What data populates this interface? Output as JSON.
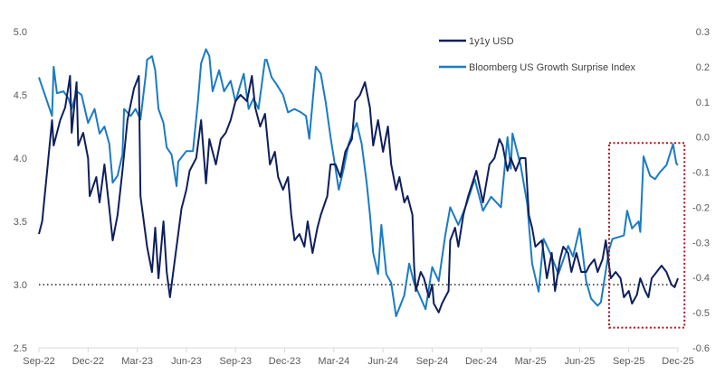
{
  "chart_data": {
    "type": "line",
    "title": "",
    "xlabel": "",
    "x_units": "months since Sep-22",
    "x_tick_labels": [
      "Sep-22",
      "Dec-22",
      "Mar-23",
      "Jun-23",
      "Sep-23",
      "Dec-23",
      "Mar-24",
      "Jun-24",
      "Sep-24",
      "Dec-24",
      "Mar-25",
      "Jun-25",
      "Sep-25",
      "Dec-25"
    ],
    "x_tick_values": [
      0,
      3,
      6,
      9,
      12,
      15,
      18,
      21,
      24,
      27,
      30,
      33,
      36,
      39
    ],
    "xlim": [
      0,
      39
    ],
    "y_left": {
      "label": "",
      "ylim": [
        2.5,
        5.0
      ],
      "ticks": [
        "2.5",
        "3.0",
        "3.5",
        "4.0",
        "4.5",
        "5.0"
      ],
      "tick_values": [
        2.5,
        3.0,
        3.5,
        4.0,
        4.5,
        5.0
      ]
    },
    "y_right": {
      "label": "",
      "ylim": [
        -0.6,
        0.3
      ],
      "ticks": [
        "-0.6",
        "-0.5",
        "-0.4",
        "-0.3",
        "-0.2",
        "-0.1",
        "0.0",
        "0.1",
        "0.2",
        "0.3"
      ],
      "tick_values": [
        -0.6,
        -0.5,
        -0.4,
        -0.3,
        -0.2,
        -0.1,
        0.0,
        0.1,
        0.2,
        0.3
      ]
    },
    "grid": false,
    "legend_position": "top-right",
    "series": [
      {
        "name": "1y1y USD",
        "axis": "left",
        "color": "#0e1f5b",
        "points": [
          [
            0,
            3.4
          ],
          [
            0.2,
            3.5
          ],
          [
            0.5,
            3.9
          ],
          [
            0.8,
            4.3
          ],
          [
            0.9,
            4.1
          ],
          [
            1.3,
            4.3
          ],
          [
            1.6,
            4.4
          ],
          [
            1.9,
            4.65
          ],
          [
            2.0,
            4.2
          ],
          [
            2.3,
            4.6
          ],
          [
            2.4,
            4.1
          ],
          [
            2.7,
            4.2
          ],
          [
            3.0,
            4.0
          ],
          [
            3.1,
            3.7
          ],
          [
            3.5,
            3.85
          ],
          [
            3.7,
            3.65
          ],
          [
            4.0,
            3.95
          ],
          [
            4.3,
            3.6
          ],
          [
            4.5,
            3.35
          ],
          [
            4.8,
            3.55
          ],
          [
            5.1,
            3.9
          ],
          [
            5.4,
            4.3
          ],
          [
            5.8,
            4.55
          ],
          [
            6.1,
            4.65
          ],
          [
            6.2,
            3.7
          ],
          [
            6.6,
            3.3
          ],
          [
            6.9,
            3.1
          ],
          [
            7.1,
            3.45
          ],
          [
            7.3,
            3.05
          ],
          [
            7.6,
            3.5
          ],
          [
            7.8,
            3.1
          ],
          [
            8.0,
            2.9
          ],
          [
            8.2,
            3.1
          ],
          [
            8.5,
            3.4
          ],
          [
            8.7,
            3.6
          ],
          [
            9.0,
            3.75
          ],
          [
            9.2,
            3.9
          ],
          [
            9.6,
            4.0
          ],
          [
            9.9,
            4.3
          ],
          [
            10.2,
            3.8
          ],
          [
            10.4,
            4.15
          ],
          [
            10.8,
            3.95
          ],
          [
            11.1,
            4.15
          ],
          [
            11.4,
            4.2
          ],
          [
            11.7,
            4.3
          ],
          [
            12.0,
            4.45
          ],
          [
            12.3,
            4.5
          ],
          [
            12.7,
            4.45
          ],
          [
            13.0,
            4.65
          ],
          [
            13.2,
            4.4
          ],
          [
            13.5,
            4.25
          ],
          [
            13.8,
            4.35
          ],
          [
            14.1,
            3.95
          ],
          [
            14.4,
            4.05
          ],
          [
            14.6,
            3.85
          ],
          [
            14.9,
            3.75
          ],
          [
            15.2,
            3.85
          ],
          [
            15.4,
            3.55
          ],
          [
            15.6,
            3.35
          ],
          [
            15.9,
            3.4
          ],
          [
            16.2,
            3.3
          ],
          [
            16.4,
            3.5
          ],
          [
            16.7,
            3.25
          ],
          [
            17.0,
            3.45
          ],
          [
            17.2,
            3.55
          ],
          [
            17.6,
            3.7
          ],
          [
            17.8,
            3.95
          ],
          [
            18.1,
            3.95
          ],
          [
            18.4,
            3.85
          ],
          [
            18.7,
            4.05
          ],
          [
            19.1,
            4.15
          ],
          [
            19.3,
            4.45
          ],
          [
            19.6,
            4.5
          ],
          [
            19.9,
            4.6
          ],
          [
            20.2,
            4.4
          ],
          [
            20.4,
            4.1
          ],
          [
            20.7,
            4.3
          ],
          [
            21.0,
            4.05
          ],
          [
            21.3,
            4.25
          ],
          [
            21.5,
            3.95
          ],
          [
            21.8,
            3.75
          ],
          [
            22.0,
            3.85
          ],
          [
            22.3,
            3.65
          ],
          [
            22.5,
            3.7
          ],
          [
            22.8,
            3.55
          ],
          [
            22.9,
            3.15
          ],
          [
            23.0,
            2.95
          ],
          [
            23.3,
            3.1
          ],
          [
            23.5,
            3.05
          ],
          [
            23.8,
            2.9
          ],
          [
            24.0,
            3.0
          ],
          [
            24.1,
            2.85
          ],
          [
            24.4,
            2.78
          ],
          [
            24.6,
            2.85
          ],
          [
            24.8,
            2.9
          ],
          [
            25.0,
            2.95
          ],
          [
            25.1,
            3.35
          ],
          [
            25.4,
            3.45
          ],
          [
            25.6,
            3.3
          ],
          [
            25.9,
            3.55
          ],
          [
            26.2,
            3.7
          ],
          [
            26.7,
            3.9
          ],
          [
            27.1,
            3.65
          ],
          [
            27.5,
            3.95
          ],
          [
            27.8,
            4.0
          ],
          [
            28.1,
            4.15
          ],
          [
            28.3,
            4.1
          ],
          [
            28.6,
            3.9
          ],
          [
            28.8,
            4.0
          ],
          [
            29.1,
            3.9
          ],
          [
            29.4,
            4.0
          ],
          [
            29.7,
            4.0
          ],
          [
            29.9,
            3.55
          ],
          [
            30.1,
            3.45
          ],
          [
            30.3,
            3.3
          ],
          [
            30.7,
            3.35
          ],
          [
            31.0,
            3.05
          ],
          [
            31.3,
            3.25
          ],
          [
            31.5,
            2.95
          ],
          [
            31.8,
            3.2
          ],
          [
            32.0,
            3.3
          ],
          [
            32.3,
            3.25
          ],
          [
            32.5,
            3.1
          ],
          [
            32.8,
            3.25
          ],
          [
            33.1,
            3.1
          ],
          [
            33.4,
            3.1
          ],
          [
            33.6,
            3.15
          ],
          [
            33.9,
            3.2
          ],
          [
            34.1,
            3.1
          ],
          [
            34.4,
            3.2
          ],
          [
            34.6,
            3.35
          ],
          [
            34.9,
            3.05
          ],
          [
            35.2,
            3.1
          ],
          [
            35.5,
            3.05
          ],
          [
            35.7,
            2.9
          ],
          [
            36.0,
            2.95
          ],
          [
            36.2,
            2.85
          ],
          [
            36.5,
            2.92
          ],
          [
            36.7,
            3.05
          ],
          [
            37.0,
            2.95
          ],
          [
            37.2,
            2.9
          ],
          [
            37.4,
            3.05
          ],
          [
            37.7,
            3.1
          ],
          [
            38.0,
            3.15
          ],
          [
            38.3,
            3.1
          ],
          [
            38.6,
            3.0
          ],
          [
            38.8,
            2.98
          ],
          [
            39.0,
            3.05
          ]
        ]
      },
      {
        "name": "Bloomberg US Growth Surprise Index",
        "axis": "right",
        "color": "#1a7bc4",
        "points": [
          [
            0,
            0.17
          ],
          [
            0.8,
            0.06
          ],
          [
            0.9,
            0.2
          ],
          [
            1.1,
            0.125
          ],
          [
            1.5,
            0.13
          ],
          [
            1.8,
            0.11
          ],
          [
            2.0,
            0.08
          ],
          [
            2.3,
            0.13
          ],
          [
            2.6,
            0.12
          ],
          [
            3.0,
            0.04
          ],
          [
            3.4,
            0.08
          ],
          [
            3.7,
            0.01
          ],
          [
            4.0,
            0.03
          ],
          [
            4.3,
            -0.02
          ],
          [
            4.5,
            -0.13
          ],
          [
            4.8,
            -0.11
          ],
          [
            5.1,
            -0.05
          ],
          [
            5.2,
            0.08
          ],
          [
            5.6,
            0.06
          ],
          [
            5.9,
            0.08
          ],
          [
            6.2,
            0.05
          ],
          [
            6.5,
            0.17
          ],
          [
            6.6,
            0.22
          ],
          [
            6.9,
            0.23
          ],
          [
            7.1,
            0.19
          ],
          [
            7.3,
            0.08
          ],
          [
            7.6,
            0.04
          ],
          [
            7.8,
            -0.03
          ],
          [
            8.1,
            -0.05
          ],
          [
            8.4,
            -0.14
          ],
          [
            8.5,
            -0.07
          ],
          [
            9.0,
            -0.04
          ],
          [
            9.4,
            -0.04
          ],
          [
            9.7,
            0.1
          ],
          [
            9.9,
            0.21
          ],
          [
            10.2,
            0.25
          ],
          [
            10.4,
            0.23
          ],
          [
            10.6,
            0.13
          ],
          [
            11.0,
            0.19
          ],
          [
            11.3,
            0.13
          ],
          [
            11.7,
            0.16
          ],
          [
            12.0,
            0.1
          ],
          [
            12.3,
            0.15
          ],
          [
            12.5,
            0.18
          ],
          [
            12.8,
            0.08
          ],
          [
            13.1,
            0.11
          ],
          [
            13.4,
            0.08
          ],
          [
            13.8,
            0.22
          ],
          [
            13.9,
            0.22
          ],
          [
            14.2,
            0.17
          ],
          [
            14.5,
            0.15
          ],
          [
            14.9,
            0.12
          ],
          [
            15.2,
            0.07
          ],
          [
            15.6,
            0.08
          ],
          [
            16.0,
            0.07
          ],
          [
            16.3,
            0.06
          ],
          [
            16.5,
            -0.005
          ],
          [
            16.9,
            0.2
          ],
          [
            17.2,
            0.18
          ],
          [
            17.5,
            0.1
          ],
          [
            17.8,
            0.0
          ],
          [
            18.1,
            -0.09
          ],
          [
            18.3,
            -0.15
          ],
          [
            18.6,
            -0.09
          ],
          [
            18.9,
            -0.02
          ],
          [
            19.2,
            0.02
          ],
          [
            19.4,
            0.04
          ],
          [
            19.7,
            -0.02
          ],
          [
            20.0,
            -0.13
          ],
          [
            20.2,
            -0.22
          ],
          [
            20.4,
            -0.33
          ],
          [
            20.7,
            -0.39
          ],
          [
            20.9,
            -0.25
          ],
          [
            21.2,
            -0.39
          ],
          [
            21.5,
            -0.415
          ],
          [
            21.8,
            -0.51
          ],
          [
            22.3,
            -0.45
          ],
          [
            22.6,
            -0.36
          ],
          [
            22.9,
            -0.415
          ],
          [
            23.6,
            -0.49
          ],
          [
            24.0,
            -0.37
          ],
          [
            24.4,
            -0.41
          ],
          [
            24.8,
            -0.28
          ],
          [
            25.1,
            -0.2
          ],
          [
            25.6,
            -0.25
          ],
          [
            26.1,
            -0.19
          ],
          [
            26.6,
            -0.12
          ],
          [
            27.1,
            -0.21
          ],
          [
            27.6,
            -0.17
          ],
          [
            28.2,
            -0.2
          ],
          [
            28.6,
            0.0
          ],
          [
            28.8,
            -0.09
          ],
          [
            28.9,
            0.01
          ],
          [
            29.4,
            -0.08
          ],
          [
            29.8,
            -0.19
          ],
          [
            30.1,
            -0.36
          ],
          [
            30.5,
            -0.44
          ],
          [
            30.8,
            -0.29
          ],
          [
            31.2,
            -0.33
          ],
          [
            31.7,
            -0.39
          ],
          [
            32.3,
            -0.31
          ],
          [
            32.6,
            -0.34
          ],
          [
            33.0,
            -0.26
          ],
          [
            33.4,
            -0.41
          ],
          [
            33.7,
            -0.46
          ],
          [
            34.1,
            -0.48
          ],
          [
            34.3,
            -0.47
          ],
          [
            34.5,
            -0.41
          ],
          [
            34.8,
            -0.32
          ],
          [
            35.0,
            -0.29
          ],
          [
            35.7,
            -0.28
          ],
          [
            35.9,
            -0.21
          ],
          [
            36.2,
            -0.26
          ],
          [
            36.6,
            -0.24
          ],
          [
            36.7,
            -0.27
          ],
          [
            36.9,
            -0.055
          ],
          [
            37.3,
            -0.11
          ],
          [
            37.6,
            -0.12
          ],
          [
            37.9,
            -0.1
          ],
          [
            38.3,
            -0.08
          ],
          [
            38.7,
            -0.02
          ],
          [
            38.9,
            -0.075
          ],
          [
            39.0,
            -0.08
          ]
        ]
      }
    ],
    "annotations": {
      "reference_line": {
        "axis": "left",
        "value": 3.0,
        "style": "dotted",
        "color": "#222222"
      },
      "highlight_box": {
        "x_range": [
          34.8,
          39.4
        ],
        "left_y_range": [
          2.66,
          4.12
        ],
        "style": "dotted",
        "color": "#a8151b"
      }
    }
  }
}
